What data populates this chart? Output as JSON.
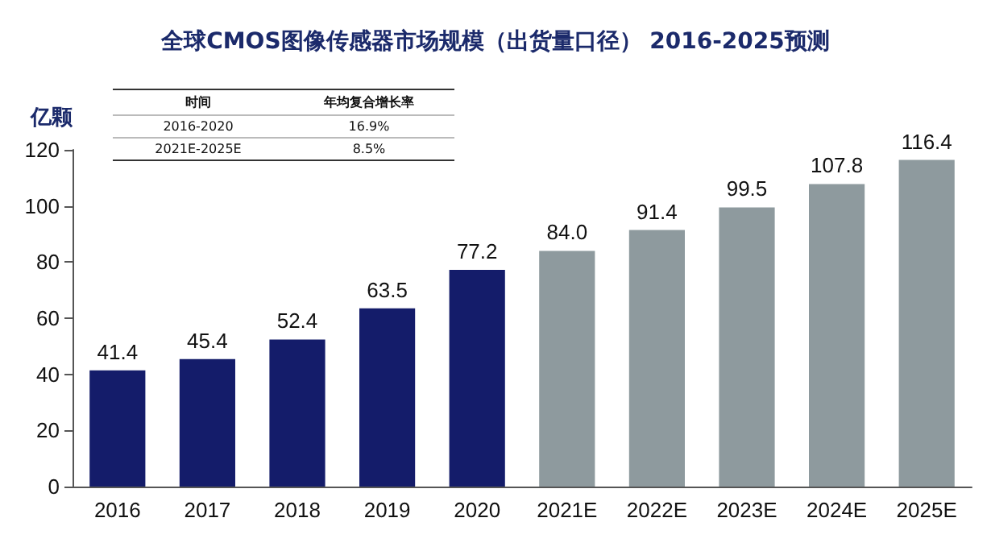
{
  "chart_data": {
    "type": "bar",
    "title": "全球CMOS图像传感器市场规模（出货量口径） 2016-2025预测",
    "ylabel": "亿颗",
    "categories": [
      "2016",
      "2017",
      "2018",
      "2019",
      "2020",
      "2021E",
      "2022E",
      "2023E",
      "2024E",
      "2025E"
    ],
    "values": [
      41.4,
      45.4,
      52.4,
      63.5,
      77.2,
      84.0,
      91.4,
      99.5,
      107.8,
      116.4
    ],
    "colors": [
      "#141c6a",
      "#141c6a",
      "#141c6a",
      "#141c6a",
      "#141c6a",
      "#8e9a9e",
      "#8e9a9e",
      "#8e9a9e",
      "#8e9a9e",
      "#8e9a9e"
    ],
    "value_labels": [
      "41.4",
      "45.4",
      "52.4",
      "63.5",
      "77.2",
      "84.0",
      "91.4",
      "99.5",
      "107.8",
      "116.4"
    ],
    "ylim": [
      0,
      120
    ],
    "yticks": [
      0,
      20,
      40,
      60,
      80,
      100,
      120
    ],
    "grid": false,
    "annotations": [
      "时间",
      "年均复合增长率",
      "2016-2020",
      "16.9%",
      "2021E-2025E",
      "8.5%"
    ]
  }
}
